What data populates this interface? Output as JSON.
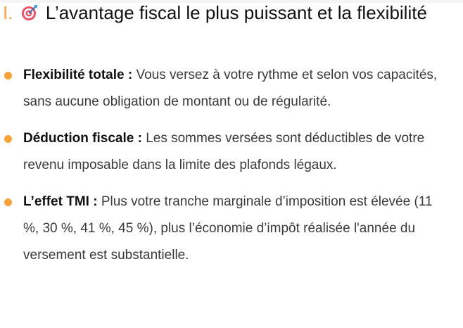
{
  "heading": {
    "number": "I.",
    "icon": "target-dart-icon",
    "title": "L’avantage fiscal le plus puissant et la flexibilité"
  },
  "accent_color": "#f7a23b",
  "items": [
    {
      "label": "Flexibilité totale :",
      "text": " Vous versez à votre rythme et selon vos capacités, sans aucune obligation de montant ou de régularité."
    },
    {
      "label": "Déduction fiscale :",
      "text": " Les sommes versées sont déductibles de votre revenu imposable dans la limite des plafonds légaux."
    },
    {
      "label": "L’effet TMI :",
      "text": " Plus votre tranche marginale d’imposition est élevée (11 %, 30 %, 41 %, 45 %), plus l’économie d’impôt réalisée l'année du versement est substantielle."
    }
  ]
}
